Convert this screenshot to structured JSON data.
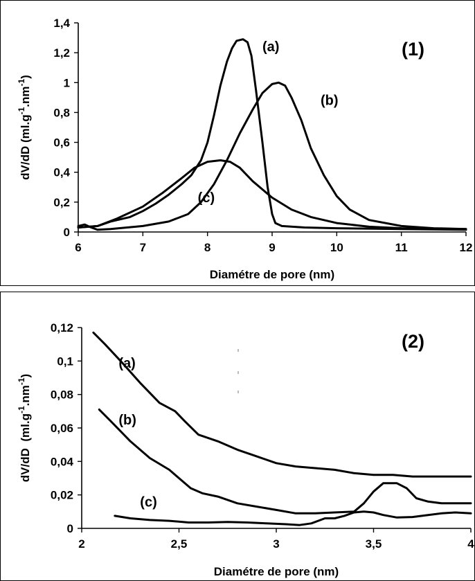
{
  "chart_data": [
    {
      "type": "line",
      "panel_label": "(1)",
      "xlabel": "Diamétre de pore (nm)",
      "ylabel": "dV/dD (ml.g-1.nm-1)",
      "ylabel_parts": {
        "a": "dV/dD (ml.g",
        "b": "-1",
        "c": ".nm",
        "d": "-1",
        "e": ")"
      },
      "xlim": [
        6,
        12
      ],
      "ylim": [
        0,
        1.4
      ],
      "x_ticks": [
        "6",
        "7",
        "8",
        "9",
        "10",
        "11",
        "12"
      ],
      "y_ticks": [
        "0",
        "0,2",
        "0,4",
        "0,6",
        "0,8",
        "1",
        "1,2",
        "1,4"
      ],
      "series": [
        {
          "name": "(a)",
          "label_at": [
            8.85,
            1.21
          ],
          "points": [
            [
              6.0,
              0.03
            ],
            [
              6.3,
              0.04
            ],
            [
              6.5,
              0.07
            ],
            [
              6.8,
              0.1
            ],
            [
              7.0,
              0.14
            ],
            [
              7.2,
              0.19
            ],
            [
              7.4,
              0.25
            ],
            [
              7.6,
              0.32
            ],
            [
              7.75,
              0.38
            ],
            [
              7.9,
              0.48
            ],
            [
              8.0,
              0.6
            ],
            [
              8.1,
              0.78
            ],
            [
              8.2,
              0.98
            ],
            [
              8.3,
              1.14
            ],
            [
              8.38,
              1.23
            ],
            [
              8.45,
              1.28
            ],
            [
              8.55,
              1.29
            ],
            [
              8.62,
              1.27
            ],
            [
              8.68,
              1.18
            ],
            [
              8.75,
              0.95
            ],
            [
              8.85,
              0.6
            ],
            [
              8.93,
              0.3
            ],
            [
              9.0,
              0.12
            ],
            [
              9.05,
              0.06
            ],
            [
              9.15,
              0.04
            ],
            [
              9.5,
              0.03
            ],
            [
              10.0,
              0.025
            ],
            [
              11.0,
              0.02
            ],
            [
              12.0,
              0.015
            ]
          ]
        },
        {
          "name": "(b)",
          "label_at": [
            9.75,
            0.85
          ],
          "points": [
            [
              6.0,
              0.04
            ],
            [
              6.1,
              0.05
            ],
            [
              6.2,
              0.03
            ],
            [
              6.3,
              0.015
            ],
            [
              6.5,
              0.02
            ],
            [
              7.0,
              0.04
            ],
            [
              7.4,
              0.07
            ],
            [
              7.7,
              0.12
            ],
            [
              7.9,
              0.2
            ],
            [
              8.1,
              0.32
            ],
            [
              8.3,
              0.48
            ],
            [
              8.5,
              0.66
            ],
            [
              8.7,
              0.82
            ],
            [
              8.85,
              0.93
            ],
            [
              9.0,
              0.99
            ],
            [
              9.1,
              1.0
            ],
            [
              9.2,
              0.98
            ],
            [
              9.3,
              0.9
            ],
            [
              9.45,
              0.75
            ],
            [
              9.6,
              0.56
            ],
            [
              9.8,
              0.38
            ],
            [
              10.0,
              0.24
            ],
            [
              10.2,
              0.15
            ],
            [
              10.5,
              0.08
            ],
            [
              11.0,
              0.04
            ],
            [
              11.5,
              0.025
            ],
            [
              12.0,
              0.02
            ]
          ]
        },
        {
          "name": "(c)",
          "label_at": [
            7.85,
            0.2
          ],
          "points": [
            [
              6.0,
              0.03
            ],
            [
              6.3,
              0.04
            ],
            [
              6.6,
              0.09
            ],
            [
              7.0,
              0.17
            ],
            [
              7.3,
              0.26
            ],
            [
              7.6,
              0.36
            ],
            [
              7.8,
              0.43
            ],
            [
              8.0,
              0.47
            ],
            [
              8.2,
              0.48
            ],
            [
              8.35,
              0.47
            ],
            [
              8.5,
              0.43
            ],
            [
              8.7,
              0.34
            ],
            [
              9.0,
              0.23
            ],
            [
              9.3,
              0.15
            ],
            [
              9.6,
              0.1
            ],
            [
              10.0,
              0.06
            ],
            [
              10.5,
              0.035
            ],
            [
              11.0,
              0.025
            ],
            [
              12.0,
              0.02
            ]
          ]
        }
      ]
    },
    {
      "type": "line",
      "panel_label": "(2)",
      "xlabel": "Diamétre de pore (nm)",
      "ylabel": "dV/dD  (ml.g-1.nm-1)",
      "ylabel_parts": {
        "a": "dV/dD  (ml.g",
        "b": "-1",
        "c": ".nm",
        "d": "-1",
        "e": ")"
      },
      "xlim": [
        2,
        4
      ],
      "ylim": [
        0,
        0.12
      ],
      "x_ticks": [
        "2",
        "2,5",
        "3",
        "3,5",
        "4"
      ],
      "y_ticks": [
        "0",
        "0,02",
        "0,04",
        "0,06",
        "0,08",
        "0,1",
        "0,12"
      ],
      "series": [
        {
          "name": "(a)",
          "label_at": [
            2.19,
            0.096
          ],
          "points": [
            [
              2.06,
              0.117
            ],
            [
              2.12,
              0.11
            ],
            [
              2.2,
              0.1
            ],
            [
              2.3,
              0.087
            ],
            [
              2.4,
              0.075
            ],
            [
              2.48,
              0.07
            ],
            [
              2.53,
              0.064
            ],
            [
              2.6,
              0.056
            ],
            [
              2.7,
              0.052
            ],
            [
              2.8,
              0.047
            ],
            [
              2.9,
              0.043
            ],
            [
              3.0,
              0.039
            ],
            [
              3.1,
              0.037
            ],
            [
              3.2,
              0.036
            ],
            [
              3.3,
              0.035
            ],
            [
              3.4,
              0.033
            ],
            [
              3.5,
              0.032
            ],
            [
              3.6,
              0.032
            ],
            [
              3.7,
              0.031
            ],
            [
              3.8,
              0.031
            ],
            [
              3.9,
              0.031
            ],
            [
              4.0,
              0.031
            ]
          ]
        },
        {
          "name": "(b)",
          "label_at": [
            2.19,
            0.062
          ],
          "points": [
            [
              2.09,
              0.071
            ],
            [
              2.15,
              0.064
            ],
            [
              2.25,
              0.052
            ],
            [
              2.35,
              0.042
            ],
            [
              2.45,
              0.035
            ],
            [
              2.5,
              0.03
            ],
            [
              2.56,
              0.024
            ],
            [
              2.62,
              0.021
            ],
            [
              2.7,
              0.019
            ],
            [
              2.8,
              0.015
            ],
            [
              2.9,
              0.013
            ],
            [
              3.0,
              0.011
            ],
            [
              3.1,
              0.009
            ],
            [
              3.2,
              0.009
            ],
            [
              3.3,
              0.0095
            ],
            [
              3.4,
              0.01
            ],
            [
              3.45,
              0.015
            ],
            [
              3.5,
              0.022
            ],
            [
              3.55,
              0.027
            ],
            [
              3.62,
              0.027
            ],
            [
              3.67,
              0.024
            ],
            [
              3.72,
              0.018
            ],
            [
              3.78,
              0.016
            ],
            [
              3.85,
              0.015
            ],
            [
              4.0,
              0.015
            ]
          ]
        },
        {
          "name": "(c)",
          "label_at": [
            2.3,
            0.013
          ],
          "points": [
            [
              2.17,
              0.0075
            ],
            [
              2.25,
              0.006
            ],
            [
              2.35,
              0.005
            ],
            [
              2.45,
              0.0045
            ],
            [
              2.55,
              0.0035
            ],
            [
              2.65,
              0.0035
            ],
            [
              2.75,
              0.0038
            ],
            [
              2.85,
              0.0035
            ],
            [
              2.95,
              0.003
            ],
            [
              3.05,
              0.0025
            ],
            [
              3.12,
              0.002
            ],
            [
              3.18,
              0.003
            ],
            [
              3.25,
              0.006
            ],
            [
              3.3,
              0.006
            ],
            [
              3.35,
              0.0075
            ],
            [
              3.4,
              0.0095
            ],
            [
              3.45,
              0.01
            ],
            [
              3.5,
              0.0095
            ],
            [
              3.55,
              0.008
            ],
            [
              3.62,
              0.0065
            ],
            [
              3.7,
              0.0068
            ],
            [
              3.78,
              0.008
            ],
            [
              3.85,
              0.009
            ],
            [
              3.92,
              0.0095
            ],
            [
              4.0,
              0.009
            ]
          ]
        }
      ]
    }
  ]
}
